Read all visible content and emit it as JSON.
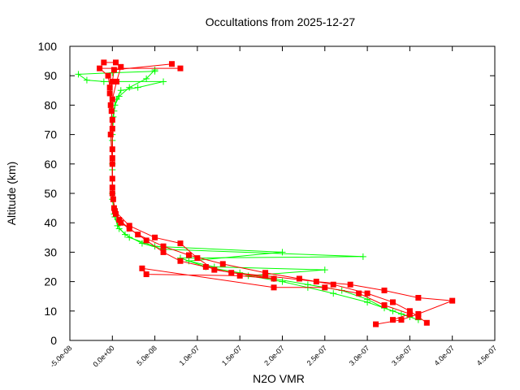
{
  "chart_data": {
    "type": "line",
    "title": "Occultations from 2025-12-27",
    "xlabel": "N2O VMR",
    "ylabel": "Altitude (km)",
    "xlim": [
      -5e-08,
      4.5e-07
    ],
    "ylim": [
      0,
      100
    ],
    "xticks": [
      -5e-08,
      0,
      5e-08,
      1e-07,
      1.5e-07,
      2e-07,
      2.5e-07,
      3e-07,
      3.5e-07,
      4e-07,
      4.5e-07
    ],
    "xtick_labels": [
      "-5.0e-08",
      "0.0e+00",
      "5.0e-08",
      "1.0e-07",
      "1.5e-07",
      "2.0e-07",
      "2.5e-07",
      "3.0e-07",
      "3.5e-07",
      "4.0e-07",
      "4.5e-07"
    ],
    "yticks": [
      0,
      10,
      20,
      30,
      40,
      50,
      60,
      70,
      80,
      90,
      100
    ],
    "ytick_labels": [
      "0",
      "10",
      "20",
      "30",
      "40",
      "50",
      "60",
      "70",
      "80",
      "90",
      "100"
    ],
    "grid": false,
    "legend": "none",
    "series": [
      {
        "color": "#00ff00",
        "marker": "plus",
        "profiles": [
          [
            [
              3.6e-07,
              7
            ],
            [
              3.4e-07,
              9
            ],
            [
              3.2e-07,
              11
            ],
            [
              3e-07,
              14
            ],
            [
              2.7e-07,
              17
            ],
            [
              2.3e-07,
              19
            ],
            [
              1.9e-07,
              21
            ],
            [
              1.5e-07,
              23
            ],
            [
              1.1e-07,
              25
            ],
            [
              8e-08,
              28
            ],
            [
              2.95e-07,
              28.5
            ],
            [
              6e-08,
              31
            ],
            [
              3.5e-08,
              33
            ],
            [
              1.5e-08,
              36
            ],
            [
              6e-09,
              39
            ],
            [
              2e-09,
              43
            ],
            [
              0,
              50
            ],
            [
              0,
              60
            ],
            [
              0,
              70
            ],
            [
              2e-09,
              78
            ],
            [
              5e-09,
              82
            ],
            [
              1e-08,
              85
            ],
            [
              3e-08,
              86
            ],
            [
              6e-08,
              88
            ],
            [
              -1e-08,
              88
            ],
            [
              -3e-08,
              88.5
            ],
            [
              -4e-08,
              90.5
            ],
            [
              0,
              91
            ],
            [
              5e-08,
              91.5
            ]
          ],
          [
            [
              3.5e-07,
              8
            ],
            [
              3.3e-07,
              10
            ],
            [
              3e-07,
              13
            ],
            [
              2.6e-07,
              16
            ],
            [
              2.3e-07,
              18
            ],
            [
              2e-07,
              20
            ],
            [
              1.6e-07,
              22
            ],
            [
              2.5e-07,
              24
            ],
            [
              1.2e-07,
              25
            ],
            [
              9e-08,
              27
            ],
            [
              2e-07,
              30
            ],
            [
              5e-08,
              32
            ],
            [
              2e-08,
              35
            ],
            [
              8e-09,
              38
            ],
            [
              3e-09,
              42
            ],
            [
              0,
              48
            ],
            [
              0,
              58
            ],
            [
              0,
              68
            ],
            [
              1e-09,
              76
            ],
            [
              3e-09,
              80
            ],
            [
              8e-09,
              83
            ],
            [
              2e-08,
              86
            ],
            [
              4e-08,
              89
            ],
            [
              5e-08,
              92
            ]
          ]
        ]
      },
      {
        "color": "#ff0000",
        "marker": "filled-square",
        "profiles": [
          [
            [
              3.7e-07,
              6
            ],
            [
              3.6e-07,
              8
            ],
            [
              3.5e-07,
              10
            ],
            [
              3.3e-07,
              13
            ],
            [
              3e-07,
              16
            ],
            [
              2.6e-07,
              19
            ],
            [
              2.2e-07,
              21
            ],
            [
              1.8e-07,
              23
            ],
            [
              1.3e-07,
              26
            ],
            [
              9e-08,
              29
            ],
            [
              6e-08,
              32
            ],
            [
              3e-08,
              36
            ],
            [
              1e-08,
              40
            ],
            [
              4e-09,
              43
            ],
            [
              1e-09,
              48
            ],
            [
              0,
              55
            ],
            [
              0,
              65
            ],
            [
              0,
              75
            ],
            [
              -2e-09,
              80
            ],
            [
              -3e-09,
              84
            ],
            [
              0,
              88
            ],
            [
              2e-09,
              92
            ],
            [
              7e-08,
              94
            ]
          ],
          [
            [
              3.1e-07,
              5.5
            ],
            [
              3.4e-07,
              7
            ],
            [
              3.6e-07,
              9
            ],
            [
              4e-07,
              13.5
            ],
            [
              3.6e-07,
              14.5
            ],
            [
              3.2e-07,
              17
            ],
            [
              2.8e-07,
              19
            ],
            [
              2.4e-07,
              20
            ],
            [
              1.8e-07,
              22
            ],
            [
              1.4e-07,
              23
            ],
            [
              1.1e-07,
              25
            ],
            [
              8e-08,
              27
            ],
            [
              6e-08,
              30
            ],
            [
              4e-08,
              34
            ],
            [
              2e-08,
              38
            ],
            [
              8e-09,
              41
            ],
            [
              2e-09,
              45
            ],
            [
              0,
              52
            ],
            [
              0,
              62
            ],
            [
              0,
              72
            ],
            [
              -1e-09,
              78
            ],
            [
              -3e-09,
              86
            ],
            [
              -5e-09,
              90
            ],
            [
              -1.5e-08,
              92.5
            ],
            [
              8e-08,
              92.5
            ]
          ],
          [
            [
              3.3e-07,
              7
            ],
            [
              3.5e-07,
              9
            ],
            [
              3.2e-07,
              12
            ],
            [
              2.9e-07,
              16
            ],
            [
              2.5e-07,
              18
            ],
            [
              1.9e-07,
              18
            ],
            [
              3.5e-08,
              24.5
            ],
            [
              4e-08,
              22.5
            ],
            [
              1.5e-07,
              22
            ],
            [
              1.9e-07,
              21
            ],
            [
              1.2e-07,
              24
            ],
            [
              1e-07,
              28
            ],
            [
              8e-08,
              33
            ],
            [
              5e-08,
              35
            ],
            [
              2e-08,
              39
            ],
            [
              3e-09,
              44
            ],
            [
              0,
              50
            ],
            [
              0,
              60
            ],
            [
              -2e-09,
              70
            ],
            [
              0,
              82
            ],
            [
              5e-09,
              88
            ],
            [
              1e-08,
              93
            ],
            [
              4e-09,
              94.5
            ],
            [
              -1e-08,
              94.5
            ]
          ]
        ]
      }
    ]
  }
}
